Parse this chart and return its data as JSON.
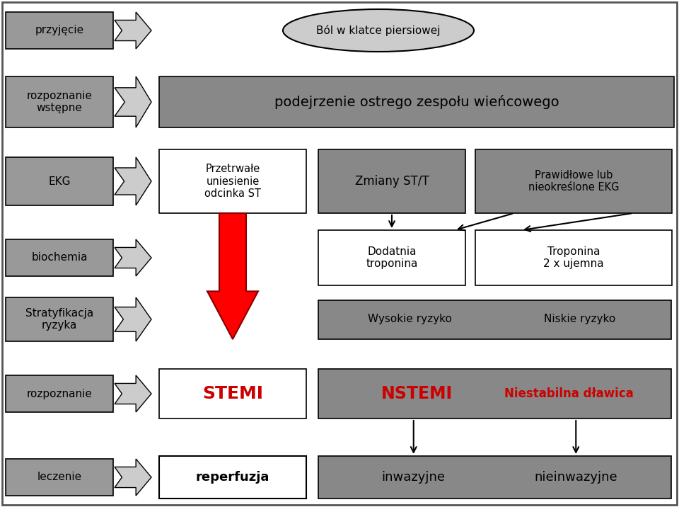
{
  "bg_color": "#ffffff",
  "gray_color": "#999999",
  "dgray_color": "#888888",
  "white_color": "#ffffff",
  "red_color": "#cc0000",
  "border_color": "#555555",
  "left_labels": [
    "przyjęcie",
    "rozpoznanie\nwstępne",
    "EKG",
    "biochemia",
    "Stratyfikacja\nryzyka",
    "rozpoznanie",
    "leczenie"
  ],
  "ellipse_text": "Ból w klatce piersiowej",
  "main_box_text": "podejrzenie ostrego zespołu wieńcowego",
  "ekg_box1_text": "Przetrwałe\nuniesienie\nodcinka ST",
  "ekg_box2_text": "Zmiany ST/T",
  "ekg_box3_text": "Prawidłowe lub\nnieokreślone EKG",
  "bio_box1_text": "Dodatnia\ntroponina",
  "bio_box2_text": "Troponina\n2 x ujemna",
  "strat_box1_text": "Wysokie ryzyko",
  "strat_box2_text": "Niskie ryzyko",
  "rozp_box1_text": "STEMI",
  "rozp_box2_text": "NSTEMI",
  "rozp_box3_text": "Niestabilna dławica",
  "lecz_box1_text": "reperfuzja",
  "lecz_box2_text": "inwazyjne",
  "lecz_box3_text": "nieinwazyjne"
}
